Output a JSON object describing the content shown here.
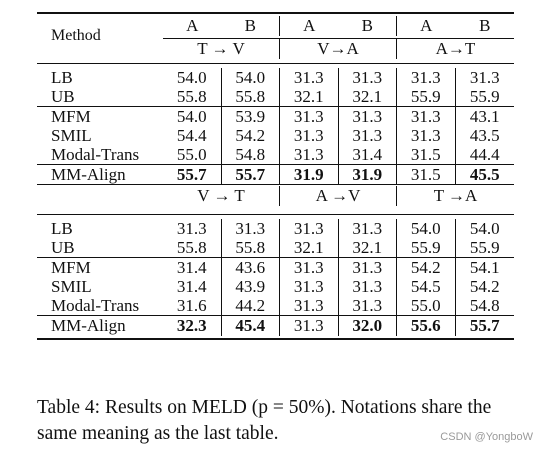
{
  "table": {
    "method_header": "Method",
    "ab_headers": [
      "A",
      "B",
      "A",
      "B",
      "A",
      "B"
    ],
    "top_groups": [
      "T → V",
      "V→A",
      "A→T"
    ],
    "bottom_groups": [
      "V → T",
      "A →V",
      "T →A"
    ],
    "top_rows": [
      {
        "method": "LB",
        "values": [
          "54.0",
          "54.0",
          "31.3",
          "31.3",
          "31.3",
          "31.3"
        ],
        "bold": [
          false,
          false,
          false,
          false,
          false,
          false
        ]
      },
      {
        "method": "UB",
        "values": [
          "55.8",
          "55.8",
          "32.1",
          "32.1",
          "55.9",
          "55.9"
        ],
        "bold": [
          false,
          false,
          false,
          false,
          false,
          false
        ]
      },
      {
        "method": "MFM",
        "values": [
          "54.0",
          "53.9",
          "31.3",
          "31.3",
          "31.3",
          "43.1"
        ],
        "bold": [
          false,
          false,
          false,
          false,
          false,
          false
        ]
      },
      {
        "method": "SMIL",
        "values": [
          "54.4",
          "54.2",
          "31.3",
          "31.3",
          "31.3",
          "43.5"
        ],
        "bold": [
          false,
          false,
          false,
          false,
          false,
          false
        ]
      },
      {
        "method": "Modal-Trans",
        "values": [
          "55.0",
          "54.8",
          "31.3",
          "31.4",
          "31.5",
          "44.4"
        ],
        "bold": [
          false,
          false,
          false,
          false,
          false,
          false
        ]
      },
      {
        "method": "MM-Align",
        "values": [
          "55.7",
          "55.7",
          "31.9",
          "31.9",
          "31.5",
          "45.5"
        ],
        "bold": [
          true,
          true,
          true,
          true,
          false,
          true
        ]
      }
    ],
    "bottom_rows": [
      {
        "method": "LB",
        "values": [
          "31.3",
          "31.3",
          "31.3",
          "31.3",
          "54.0",
          "54.0"
        ],
        "bold": [
          false,
          false,
          false,
          false,
          false,
          false
        ]
      },
      {
        "method": "UB",
        "values": [
          "55.8",
          "55.8",
          "32.1",
          "32.1",
          "55.9",
          "55.9"
        ],
        "bold": [
          false,
          false,
          false,
          false,
          false,
          false
        ]
      },
      {
        "method": "MFM",
        "values": [
          "31.4",
          "43.6",
          "31.3",
          "31.3",
          "54.2",
          "54.1"
        ],
        "bold": [
          false,
          false,
          false,
          false,
          false,
          false
        ]
      },
      {
        "method": "SMIL",
        "values": [
          "31.4",
          "43.9",
          "31.3",
          "31.3",
          "54.5",
          "54.2"
        ],
        "bold": [
          false,
          false,
          false,
          false,
          false,
          false
        ]
      },
      {
        "method": "Modal-Trans",
        "values": [
          "31.6",
          "44.2",
          "31.3",
          "31.3",
          "55.0",
          "54.8"
        ],
        "bold": [
          false,
          false,
          false,
          false,
          false,
          false
        ]
      },
      {
        "method": "MM-Align",
        "values": [
          "32.3",
          "45.4",
          "31.3",
          "32.0",
          "55.6",
          "55.7"
        ],
        "bold": [
          true,
          true,
          false,
          true,
          true,
          true
        ]
      }
    ]
  },
  "caption": "Table 4: Results on MELD (p = 50%). Notations share the same meaning as the last table.",
  "watermark": "CSDN @YongboW"
}
